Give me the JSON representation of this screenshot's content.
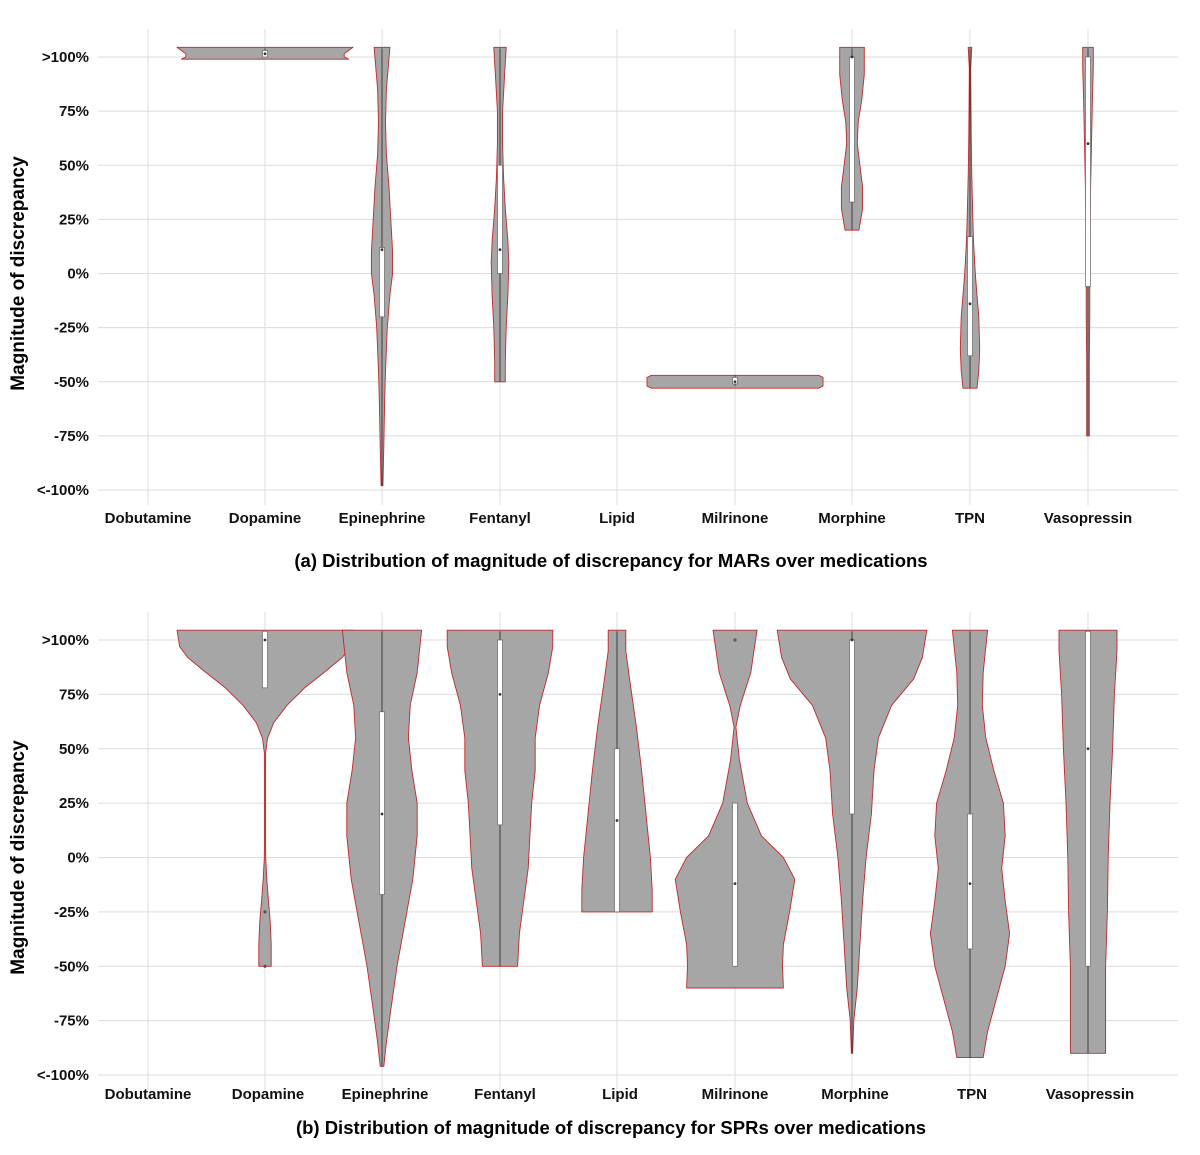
{
  "chart_data": [
    {
      "type": "violin",
      "caption": "(a) Distribution of magnitude of discrepancy for MARs over medications",
      "ylabel": "Magnitude of discrepancy",
      "categories": [
        "Dobutamine",
        "Dopamine",
        "Epinephrine",
        "Fentanyl",
        "Lipid",
        "Milrinone",
        "Morphine",
        "TPN",
        "Vasopressin"
      ],
      "yticks": [
        {
          "value": 100,
          "label": ">100%"
        },
        {
          "value": 75,
          "label": "75%"
        },
        {
          "value": 50,
          "label": "50%"
        },
        {
          "value": 25,
          "label": "25%"
        },
        {
          "value": 0,
          "label": "0%"
        },
        {
          "value": -25,
          "label": "-25%"
        },
        {
          "value": -50,
          "label": "-50%"
        },
        {
          "value": -75,
          "label": "-75%"
        },
        {
          "value": -100,
          "label": "<-100%"
        }
      ],
      "ylim": [
        -107,
        113
      ],
      "grid": true,
      "violins": [
        {
          "category": "Dopamine",
          "profile": [
            [
              99,
              0.95
            ],
            [
              100,
              0.9
            ],
            [
              101.5,
              0.9
            ],
            [
              103,
              0.95
            ],
            [
              104.5,
              1.0
            ]
          ],
          "box": {
            "q1": 100,
            "median": 101.5,
            "q3": 103,
            "whisker_low": 100,
            "whisker_high": 104
          }
        },
        {
          "category": "Epinephrine",
          "profile": [
            [
              -98,
              0.01
            ],
            [
              -80,
              0.02
            ],
            [
              -60,
              0.03
            ],
            [
              -45,
              0.04
            ],
            [
              -25,
              0.06
            ],
            [
              -10,
              0.09
            ],
            [
              0,
              0.12
            ],
            [
              10,
              0.12
            ],
            [
              25,
              0.1
            ],
            [
              40,
              0.08
            ],
            [
              55,
              0.05
            ],
            [
              70,
              0.04
            ],
            [
              85,
              0.05
            ],
            [
              95,
              0.07
            ],
            [
              104.5,
              0.09
            ]
          ],
          "box": {
            "q1": -20,
            "median": 11,
            "q3": 12,
            "whisker_low": -98,
            "whisker_high": 104
          }
        },
        {
          "category": "Fentanyl",
          "profile": [
            [
              -50,
              0.06
            ],
            [
              -40,
              0.06
            ],
            [
              -25,
              0.07
            ],
            [
              -10,
              0.09
            ],
            [
              5,
              0.1
            ],
            [
              15,
              0.09
            ],
            [
              30,
              0.06
            ],
            [
              45,
              0.04
            ],
            [
              60,
              0.03
            ],
            [
              75,
              0.03
            ],
            [
              90,
              0.05
            ],
            [
              104.5,
              0.07
            ]
          ],
          "box": {
            "q1": 0,
            "median": 11,
            "q3": 50,
            "whisker_low": -50,
            "whisker_high": 104
          }
        },
        {
          "category": "Milrinone",
          "profile": [
            [
              -53,
              0.95
            ],
            [
              -52,
              1.0
            ],
            [
              -48,
              1.0
            ],
            [
              -47,
              0.95
            ]
          ],
          "box": {
            "q1": -51,
            "median": -50,
            "q3": -48,
            "whisker_low": -52,
            "whisker_high": -47
          }
        },
        {
          "category": "Morphine",
          "profile": [
            [
              20,
              0.08
            ],
            [
              30,
              0.12
            ],
            [
              40,
              0.12
            ],
            [
              50,
              0.09
            ],
            [
              60,
              0.06
            ],
            [
              70,
              0.07
            ],
            [
              80,
              0.11
            ],
            [
              92,
              0.14
            ],
            [
              104.5,
              0.14
            ]
          ],
          "box": {
            "q1": 33,
            "median": 100,
            "q3": 100,
            "whisker_low": 20,
            "whisker_high": 104
          }
        },
        {
          "category": "TPN",
          "profile": [
            [
              -53,
              0.08
            ],
            [
              -45,
              0.1
            ],
            [
              -35,
              0.11
            ],
            [
              -20,
              0.1
            ],
            [
              -10,
              0.08
            ],
            [
              0,
              0.06
            ],
            [
              15,
              0.04
            ],
            [
              30,
              0.03
            ],
            [
              45,
              0.02
            ],
            [
              60,
              0.015
            ],
            [
              80,
              0.01
            ],
            [
              95,
              0.008
            ],
            [
              104.5,
              0.02
            ]
          ],
          "box": {
            "q1": -38,
            "median": -14,
            "q3": 17,
            "whisker_low": -53,
            "whisker_high": 104
          }
        },
        {
          "category": "Vasopressin",
          "profile": [
            [
              -75,
              0.015
            ],
            [
              -60,
              0.015
            ],
            [
              -40,
              0.015
            ],
            [
              -20,
              0.02
            ],
            [
              0,
              0.02
            ],
            [
              20,
              0.025
            ],
            [
              40,
              0.03
            ],
            [
              60,
              0.04
            ],
            [
              80,
              0.05
            ],
            [
              95,
              0.06
            ],
            [
              104.5,
              0.06
            ]
          ],
          "box": {
            "q1": -6,
            "median": 60,
            "q3": 100,
            "whisker_low": -75,
            "whisker_high": 104
          }
        }
      ]
    },
    {
      "type": "violin",
      "caption": "(b) Distribution of magnitude of discrepancy for SPRs over medications",
      "ylabel": "Magnitude of discrepancy",
      "categories": [
        "Dobutamine",
        "Dopamine",
        "Epinephrine",
        "Fentanyl",
        "Lipid",
        "Milrinone",
        "Morphine",
        "TPN",
        "Vasopressin"
      ],
      "yticks": [
        {
          "value": 100,
          "label": ">100%"
        },
        {
          "value": 75,
          "label": "75%"
        },
        {
          "value": 50,
          "label": "50%"
        },
        {
          "value": 25,
          "label": "25%"
        },
        {
          "value": 0,
          "label": "0%"
        },
        {
          "value": -25,
          "label": "-25%"
        },
        {
          "value": -50,
          "label": "-50%"
        },
        {
          "value": -75,
          "label": "-75%"
        },
        {
          "value": -100,
          "label": "<-100%"
        }
      ],
      "ylim": [
        -107,
        113
      ],
      "grid": true,
      "violins": [
        {
          "category": "Dopamine",
          "profile": [
            [
              -50,
              0.07
            ],
            [
              -40,
              0.07
            ],
            [
              -30,
              0.06
            ],
            [
              -20,
              0.04
            ],
            [
              -10,
              0.02
            ],
            [
              0,
              0.008
            ],
            [
              5,
              0.004
            ],
            [
              20,
              0.003
            ],
            [
              40,
              0.003
            ],
            [
              48,
              0.005
            ],
            [
              55,
              0.03
            ],
            [
              62,
              0.1
            ],
            [
              70,
              0.25
            ],
            [
              78,
              0.45
            ],
            [
              86,
              0.7
            ],
            [
              92,
              0.88
            ],
            [
              97,
              0.97
            ],
            [
              104.5,
              1.0
            ]
          ],
          "box": {
            "q1": 78,
            "median": 100,
            "q3": 104,
            "whisker_low": 78,
            "whisker_high": 104
          },
          "outliers": [
            -25,
            -50
          ]
        },
        {
          "category": "Epinephrine",
          "profile": [
            [
              -96,
              0.02
            ],
            [
              -85,
              0.05
            ],
            [
              -70,
              0.1
            ],
            [
              -50,
              0.17
            ],
            [
              -30,
              0.26
            ],
            [
              -10,
              0.35
            ],
            [
              10,
              0.4
            ],
            [
              25,
              0.4
            ],
            [
              40,
              0.34
            ],
            [
              55,
              0.3
            ],
            [
              70,
              0.32
            ],
            [
              85,
              0.4
            ],
            [
              104.5,
              0.45
            ]
          ],
          "box": {
            "q1": -17,
            "median": 20,
            "q3": 67,
            "whisker_low": -96,
            "whisker_high": 104
          }
        },
        {
          "category": "Fentanyl",
          "profile": [
            [
              -50,
              0.2
            ],
            [
              -35,
              0.22
            ],
            [
              -20,
              0.27
            ],
            [
              -5,
              0.32
            ],
            [
              10,
              0.34
            ],
            [
              25,
              0.36
            ],
            [
              40,
              0.4
            ],
            [
              55,
              0.4
            ],
            [
              70,
              0.45
            ],
            [
              85,
              0.55
            ],
            [
              97,
              0.6
            ],
            [
              104.5,
              0.6
            ]
          ],
          "box": {
            "q1": 15,
            "median": 75,
            "q3": 100,
            "whisker_low": -50,
            "whisker_high": 104
          }
        },
        {
          "category": "Lipid",
          "profile": [
            [
              -25,
              0.4
            ],
            [
              -15,
              0.4
            ],
            [
              0,
              0.38
            ],
            [
              20,
              0.33
            ],
            [
              40,
              0.28
            ],
            [
              60,
              0.22
            ],
            [
              80,
              0.15
            ],
            [
              95,
              0.1
            ],
            [
              104.5,
              0.1
            ]
          ],
          "box": {
            "q1": -25,
            "median": 17,
            "q3": 50,
            "whisker_low": -25,
            "whisker_high": 104
          }
        },
        {
          "category": "Milrinone",
          "profile": [
            [
              -60,
              0.55
            ],
            [
              -50,
              0.54
            ],
            [
              -40,
              0.55
            ],
            [
              -25,
              0.62
            ],
            [
              -10,
              0.68
            ],
            [
              0,
              0.55
            ],
            [
              10,
              0.3
            ],
            [
              25,
              0.14
            ],
            [
              45,
              0.05
            ],
            [
              60,
              0.01
            ],
            [
              70,
              0.06
            ],
            [
              85,
              0.18
            ],
            [
              104.5,
              0.25
            ]
          ],
          "box": {
            "q1": -50,
            "median": -12,
            "q3": 25,
            "whisker_low": -50,
            "whisker_high": 25
          },
          "outliers": [
            100
          ]
        },
        {
          "category": "Morphine",
          "profile": [
            [
              -90,
              0.005
            ],
            [
              -75,
              0.02
            ],
            [
              -60,
              0.06
            ],
            [
              -40,
              0.09
            ],
            [
              -20,
              0.12
            ],
            [
              0,
              0.16
            ],
            [
              20,
              0.22
            ],
            [
              40,
              0.25
            ],
            [
              55,
              0.3
            ],
            [
              70,
              0.45
            ],
            [
              82,
              0.7
            ],
            [
              92,
              0.8
            ],
            [
              104.5,
              0.85
            ]
          ],
          "box": {
            "q1": 20,
            "median": 100,
            "q3": 100,
            "whisker_low": -90,
            "whisker_high": 104
          }
        },
        {
          "category": "TPN",
          "profile": [
            [
              -92,
              0.15
            ],
            [
              -80,
              0.2
            ],
            [
              -65,
              0.3
            ],
            [
              -50,
              0.4
            ],
            [
              -35,
              0.45
            ],
            [
              -20,
              0.4
            ],
            [
              -5,
              0.36
            ],
            [
              10,
              0.4
            ],
            [
              25,
              0.38
            ],
            [
              40,
              0.27
            ],
            [
              55,
              0.18
            ],
            [
              70,
              0.14
            ],
            [
              85,
              0.15
            ],
            [
              104.5,
              0.2
            ]
          ],
          "box": {
            "q1": -42,
            "median": -12,
            "q3": 20,
            "whisker_low": -92,
            "whisker_high": 104
          }
        },
        {
          "category": "Vasopressin",
          "profile": [
            [
              -90,
              0.2
            ],
            [
              -75,
              0.2
            ],
            [
              -50,
              0.2
            ],
            [
              -25,
              0.22
            ],
            [
              0,
              0.23
            ],
            [
              25,
              0.25
            ],
            [
              50,
              0.28
            ],
            [
              75,
              0.3
            ],
            [
              95,
              0.33
            ],
            [
              104.5,
              0.33
            ]
          ],
          "box": {
            "q1": -50,
            "median": 50,
            "q3": 104,
            "whisker_low": -90,
            "whisker_high": 104
          }
        }
      ]
    }
  ]
}
